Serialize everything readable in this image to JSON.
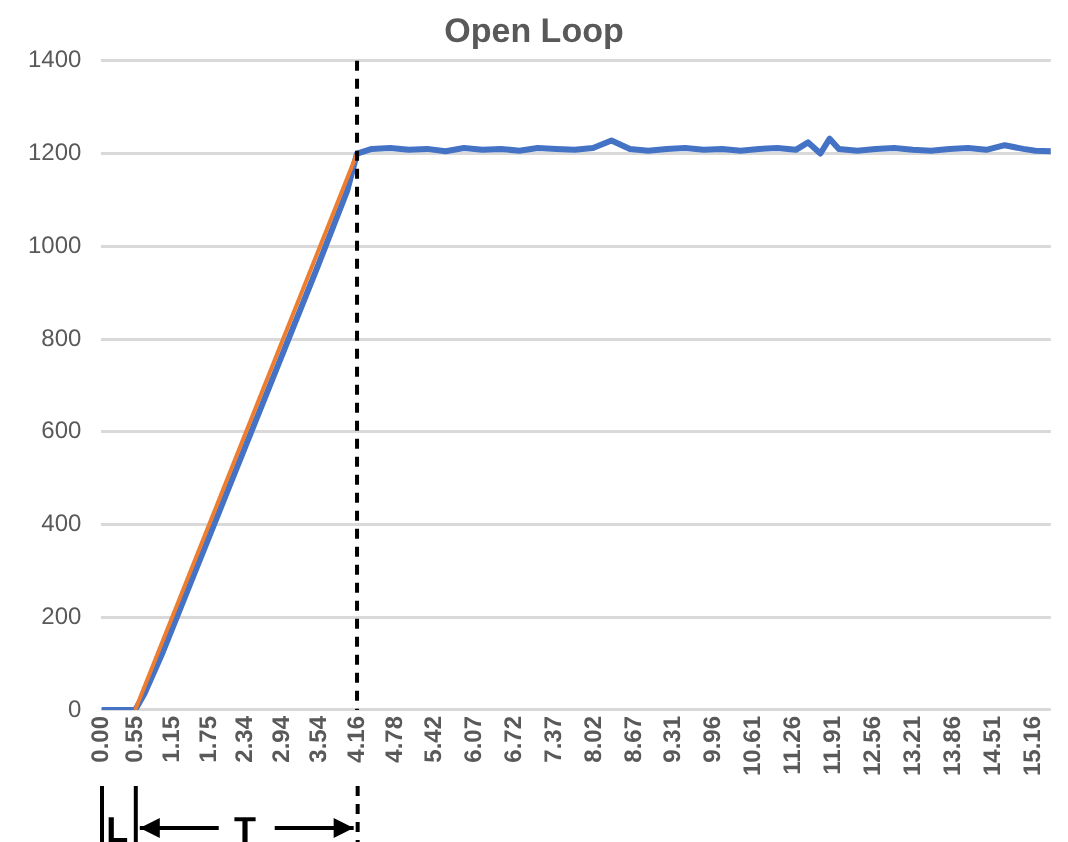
{
  "chart_data": {
    "type": "line",
    "title": "Open Loop",
    "xlim": [
      0,
      15.45
    ],
    "xticks": [
      {
        "value": 0,
        "label": "0.00"
      },
      {
        "value": 0.55,
        "label": "0.55"
      },
      {
        "value": 1.15,
        "label": "1.15"
      },
      {
        "value": 1.75,
        "label": "1.75"
      },
      {
        "value": 2.34,
        "label": "2.34"
      },
      {
        "value": 2.94,
        "label": "2.94"
      },
      {
        "value": 3.54,
        "label": "3.54"
      },
      {
        "value": 4.16,
        "label": "4.16"
      },
      {
        "value": 4.78,
        "label": "4.78"
      },
      {
        "value": 5.42,
        "label": "5.42"
      },
      {
        "value": 6.07,
        "label": "6.07"
      },
      {
        "value": 6.72,
        "label": "6.72"
      },
      {
        "value": 7.37,
        "label": "7.37"
      },
      {
        "value": 8.02,
        "label": "8.02"
      },
      {
        "value": 8.67,
        "label": "8.67"
      },
      {
        "value": 9.31,
        "label": "9.31"
      },
      {
        "value": 9.96,
        "label": "9.96"
      },
      {
        "value": 10.61,
        "label": "10.61"
      },
      {
        "value": 11.26,
        "label": "11.26"
      },
      {
        "value": 11.91,
        "label": "11.91"
      },
      {
        "value": 12.56,
        "label": "12.56"
      },
      {
        "value": 13.21,
        "label": "13.21"
      },
      {
        "value": 13.86,
        "label": "13.86"
      },
      {
        "value": 14.51,
        "label": "14.51"
      },
      {
        "value": 15.16,
        "label": "15.16"
      }
    ],
    "ylim": [
      0,
      1400
    ],
    "yticks": [
      0,
      200,
      400,
      600,
      800,
      1000,
      1200,
      1400
    ],
    "grid": "y",
    "legend": false,
    "marker": "none",
    "series": [
      {
        "color": "#4472c4",
        "x": [
          0,
          0.55,
          0.7,
          1.0,
          1.5,
          2.0,
          2.5,
          3.0,
          3.5,
          4.0,
          4.16,
          4.4,
          4.7,
          5.0,
          5.3,
          5.6,
          5.9,
          6.2,
          6.5,
          6.8,
          7.1,
          7.4,
          7.7,
          8.0,
          8.3,
          8.6,
          8.9,
          9.2,
          9.5,
          9.8,
          10.1,
          10.4,
          10.7,
          11.0,
          11.3,
          11.5,
          11.7,
          11.85,
          12.0,
          12.3,
          12.6,
          12.9,
          13.2,
          13.5,
          13.8,
          14.1,
          14.4,
          14.7,
          15.0,
          15.2,
          15.45
        ],
        "values": [
          0,
          0,
          35,
          125,
          290,
          455,
          620,
          785,
          950,
          1120,
          1200,
          1210,
          1212,
          1208,
          1210,
          1205,
          1212,
          1208,
          1210,
          1206,
          1212,
          1210,
          1208,
          1212,
          1228,
          1210,
          1206,
          1210,
          1212,
          1208,
          1210,
          1206,
          1210,
          1212,
          1208,
          1224,
          1200,
          1232,
          1210,
          1206,
          1210,
          1212,
          1208,
          1206,
          1210,
          1212,
          1208,
          1218,
          1210,
          1206,
          1205
        ]
      },
      {
        "color": "#ed7d31",
        "x": [
          0.55,
          4.16
        ],
        "values": [
          0,
          1200
        ]
      }
    ],
    "ref_lines": [
      {
        "axis": "x",
        "value": 4.16,
        "color": "#000000",
        "line_style": "dashed"
      }
    ],
    "annotations": [
      "L",
      "T"
    ]
  }
}
